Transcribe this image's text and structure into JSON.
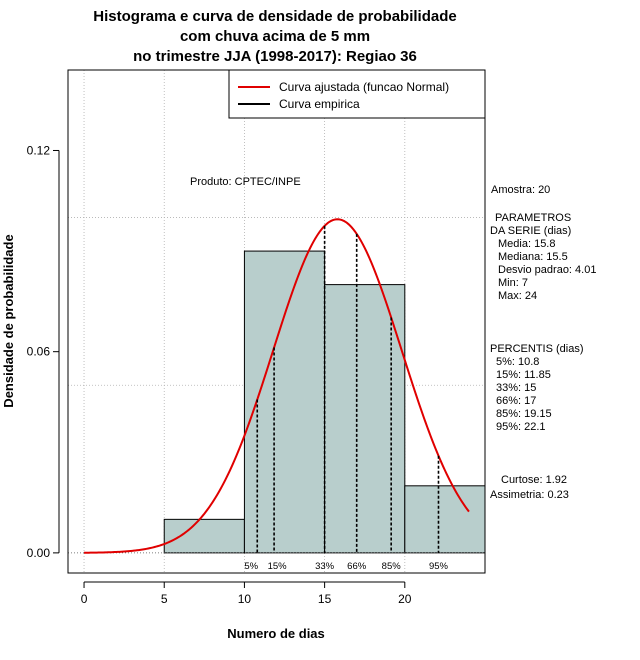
{
  "chart_data": {
    "type": "histogram",
    "title": [
      "Histograma e curva de densidade de probabilidade",
      "com chuva acima de 5 mm",
      "no trimestre JJA (1998-2017): Regiao 36"
    ],
    "xlabel": "Numero de dias",
    "ylabel": "Densidade de probabilidade",
    "xlim": [
      -1,
      25
    ],
    "ylim": [
      -0.006,
      0.144
    ],
    "x_ticks": [
      0,
      5,
      10,
      15,
      20
    ],
    "y_ticks": [
      0.0,
      0.06,
      0.12
    ],
    "y_tick_labels": [
      "0.00",
      "0.06",
      "0.12"
    ],
    "grid": true,
    "x_grid": [
      0,
      5,
      10,
      15,
      20
    ],
    "y_grid": [
      0.05,
      0.1
    ],
    "bins": [
      {
        "from": 5,
        "to": 10,
        "density": 0.01
      },
      {
        "from": 10,
        "to": 15,
        "density": 0.09
      },
      {
        "from": 15,
        "to": 20,
        "density": 0.08
      },
      {
        "from": 20,
        "to": 25,
        "density": 0.02
      }
    ],
    "normal_fit": {
      "mean": 15.8,
      "sd": 4.01,
      "x_from": 0,
      "x_to": 24
    },
    "percentiles": [
      {
        "label": "5%",
        "x": 10.8
      },
      {
        "label": "15%",
        "x": 11.85
      },
      {
        "label": "33%",
        "x": 15
      },
      {
        "label": "66%",
        "x": 17
      },
      {
        "label": "85%",
        "x": 19.15
      },
      {
        "label": "95%",
        "x": 22.1
      }
    ],
    "legend": {
      "placement": "top-right",
      "entries": [
        {
          "label": "Curva ajustada (funcao Normal)",
          "color": "#e00000"
        },
        {
          "label": "Curva empirica",
          "color": "#000000"
        }
      ]
    },
    "annotations": {
      "produto": "Produto: CPTEC/INPE",
      "amostra": "Amostra: 20",
      "parametros": [
        "PARAMETROS",
        "DA SERIE (dias)",
        "Media: 15.8",
        "Mediana: 15.5",
        "Desvio padrao: 4.01",
        "Min: 7",
        "Max: 24"
      ],
      "percentis": [
        "PERCENTIS (dias)",
        "5%: 10.8",
        "15%: 11.85",
        "33%: 15",
        "66%: 17",
        "85%: 19.15",
        "95%: 22.1"
      ],
      "forma": [
        "Curtose: 1.92",
        "Assimetria: 0.23"
      ]
    },
    "colors": {
      "bar_fill": "#b8cecc",
      "curve": "#e00000",
      "grid": "#b0b0b0"
    }
  }
}
